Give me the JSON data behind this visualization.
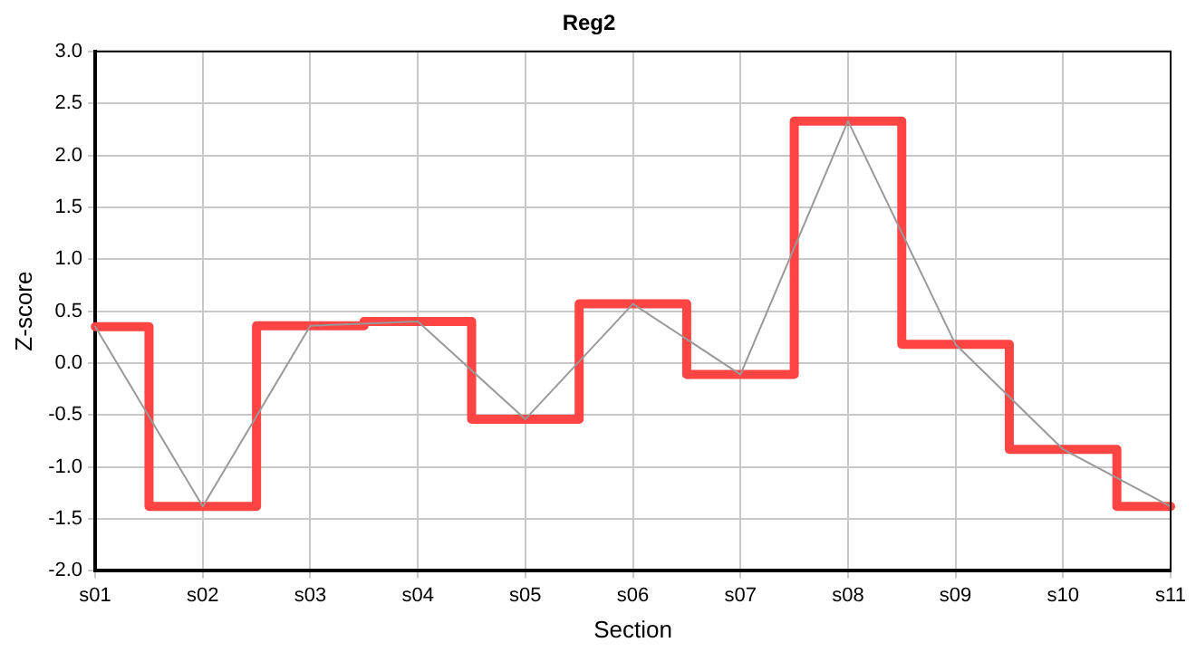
{
  "chart_data": {
    "type": "line",
    "title": "Reg2",
    "xlabel": "Section",
    "ylabel": "Z-score",
    "categories": [
      "s01",
      "s02",
      "s03",
      "s04",
      "s05",
      "s06",
      "s07",
      "s08",
      "s09",
      "s10",
      "s11"
    ],
    "series": [
      {
        "type": "line",
        "color": "#999999",
        "values": [
          0.35,
          -1.38,
          0.36,
          0.4,
          -0.54,
          0.57,
          -0.11,
          2.33,
          0.18,
          -0.83,
          -1.38
        ]
      },
      {
        "type": "step",
        "color": "#ff4444",
        "values": [
          0.35,
          -1.38,
          0.36,
          0.4,
          -0.54,
          0.57,
          -0.11,
          2.33,
          0.18,
          -0.83,
          -1.38
        ]
      }
    ],
    "ylim": [
      -2,
      3
    ],
    "yticks": [
      {
        "value": -2,
        "label": "-2.0"
      },
      {
        "value": -1.5,
        "label": "-1.5"
      },
      {
        "value": -1,
        "label": "-1.0"
      },
      {
        "value": -0.5,
        "label": "-0.5"
      },
      {
        "value": 0,
        "label": "0.0"
      },
      {
        "value": 0.5,
        "label": "0.5"
      },
      {
        "value": 1,
        "label": "1.0"
      },
      {
        "value": 1.5,
        "label": "1.5"
      },
      {
        "value": 2,
        "label": "2.0"
      },
      {
        "value": 2.5,
        "label": "2.5"
      },
      {
        "value": 3,
        "label": "3.0"
      }
    ],
    "grid": true,
    "legend": false,
    "marker": "none"
  }
}
